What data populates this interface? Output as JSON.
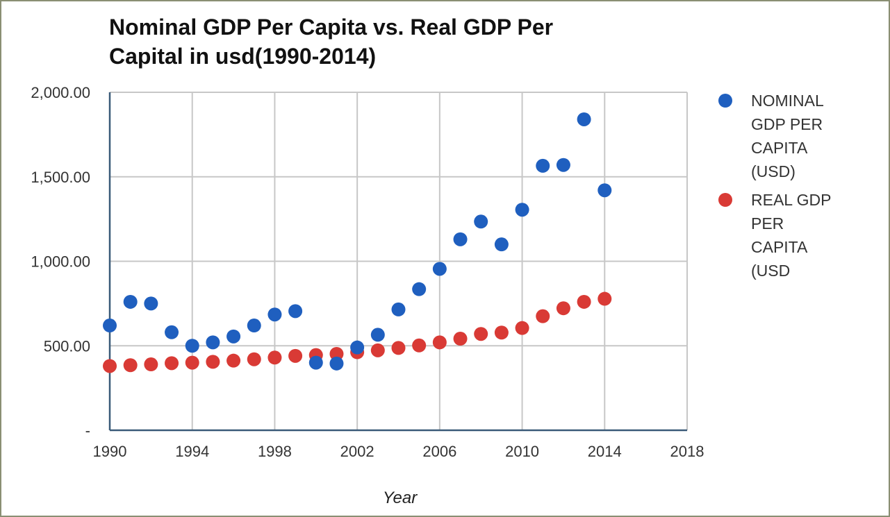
{
  "chart_data": {
    "type": "scatter",
    "title": "Nominal GDP Per Capita vs. Real GDP Per\nCapital in usd(1990-2014)",
    "xlabel": "Year",
    "ylabel": "",
    "xlim": [
      1990,
      2018
    ],
    "ylim": [
      0,
      2000
    ],
    "x_ticks": [
      "1990",
      "1994",
      "1998",
      "2002",
      "2006",
      "2010",
      "2014",
      "2018"
    ],
    "y_ticks": [
      "-",
      "500.00",
      "1,000.00",
      "1,500.00",
      "2,000.00"
    ],
    "grid": true,
    "legend_position": "right",
    "x": [
      1990,
      1991,
      1992,
      1993,
      1994,
      1995,
      1996,
      1997,
      1998,
      1999,
      2000,
      2001,
      2002,
      2003,
      2004,
      2005,
      2006,
      2007,
      2008,
      2009,
      2010,
      2011,
      2012,
      2013,
      2014
    ],
    "series": [
      {
        "name": "NOMINAL GDP PER CAPITA (USD)",
        "color": "#1f5fbf",
        "values": [
          620,
          760,
          750,
          580,
          500,
          520,
          555,
          620,
          685,
          705,
          400,
          395,
          490,
          565,
          715,
          835,
          955,
          1130,
          1235,
          1100,
          1305,
          1565,
          1570,
          1840,
          1420
        ]
      },
      {
        "name": "REAL GDP PER CAPITA (USD",
        "color": "#d93a35",
        "values": [
          380,
          385,
          390,
          397,
          400,
          405,
          412,
          420,
          430,
          440,
          445,
          452,
          462,
          473,
          487,
          502,
          520,
          542,
          570,
          578,
          605,
          675,
          722,
          760,
          778
        ]
      }
    ]
  }
}
